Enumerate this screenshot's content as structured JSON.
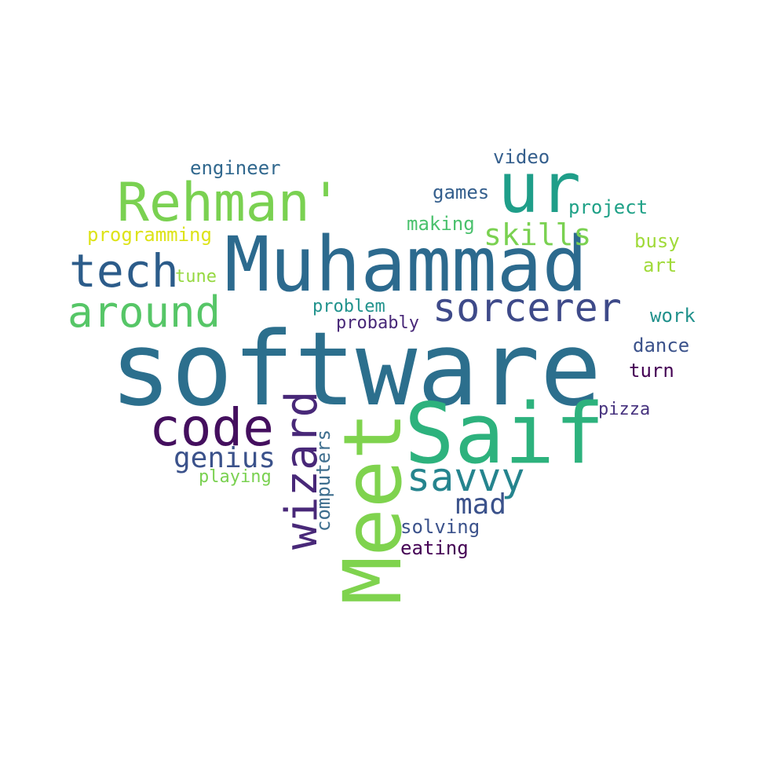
{
  "words": [
    {
      "text": "software",
      "color": "#2c6f8d"
    },
    {
      "text": "Muhammad",
      "color": "#2c6a8e"
    },
    {
      "text": "Meet",
      "color": "#7fd34e"
    },
    {
      "text": "Saif",
      "color": "#2db27d"
    },
    {
      "text": "ur",
      "color": "#1f9e89"
    },
    {
      "text": "Rehman'",
      "color": "#7ad151"
    },
    {
      "text": "wizard",
      "color": "#482878"
    },
    {
      "text": "code",
      "color": "#440f5e"
    },
    {
      "text": "tech",
      "color": "#2c5c8a"
    },
    {
      "text": "around",
      "color": "#56c667"
    },
    {
      "text": "sorcerer",
      "color": "#3e4a89"
    },
    {
      "text": "savvy",
      "color": "#25848e"
    },
    {
      "text": "skills",
      "color": "#7ad151"
    },
    {
      "text": "genius",
      "color": "#3b528b"
    },
    {
      "text": "mad",
      "color": "#3b528b"
    },
    {
      "text": "computers",
      "color": "#3e6e8e"
    },
    {
      "text": "engineer",
      "color": "#31688e"
    },
    {
      "text": "video",
      "color": "#355f8d"
    },
    {
      "text": "games",
      "color": "#355f8d"
    },
    {
      "text": "project",
      "color": "#1fa187"
    },
    {
      "text": "making",
      "color": "#4ac16d"
    },
    {
      "text": "programming",
      "color": "#dde318"
    },
    {
      "text": "busy",
      "color": "#a0da39"
    },
    {
      "text": "art",
      "color": "#a0da39"
    },
    {
      "text": "tune",
      "color": "#95d840"
    },
    {
      "text": "problem",
      "color": "#20928c"
    },
    {
      "text": "probably",
      "color": "#482878"
    },
    {
      "text": "work",
      "color": "#21918c"
    },
    {
      "text": "dance",
      "color": "#3b528b"
    },
    {
      "text": "turn",
      "color": "#440154"
    },
    {
      "text": "pizza",
      "color": "#46327e"
    },
    {
      "text": "playing",
      "color": "#7ad151"
    },
    {
      "text": "solving",
      "color": "#3b528b"
    },
    {
      "text": "eating",
      "color": "#440154"
    }
  ]
}
